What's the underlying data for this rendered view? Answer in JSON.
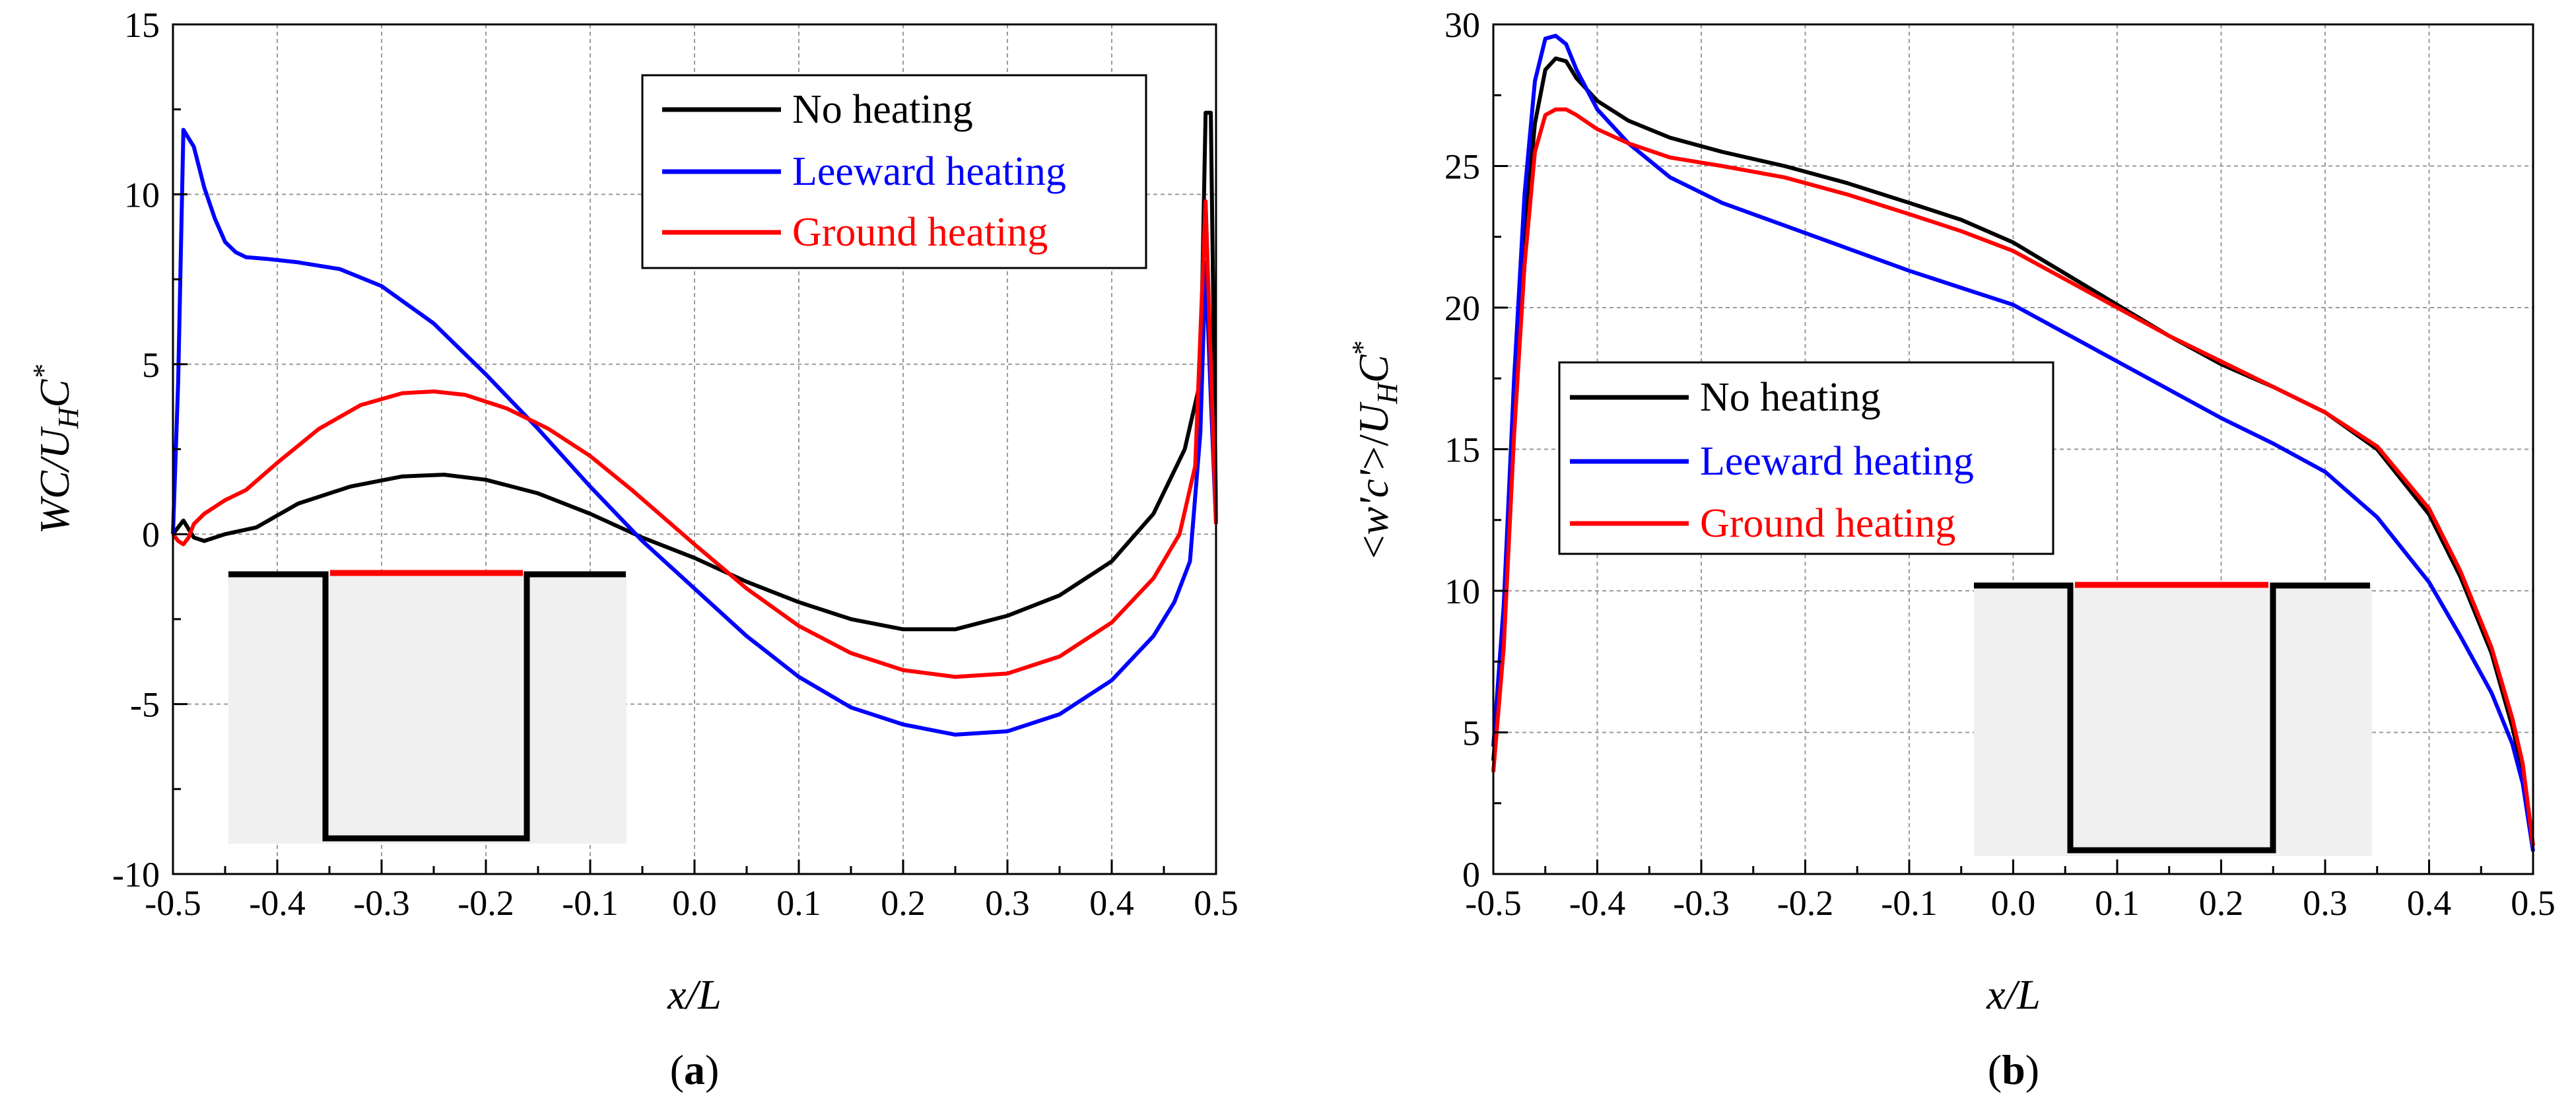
{
  "chart_data": [
    {
      "panel": "(a)",
      "panel_letter": "a",
      "type": "line",
      "xlabel": "x/L",
      "ylabel": "WC/U_H C*",
      "xlim": [
        -0.5,
        0.5
      ],
      "ylim": [
        -10,
        15
      ],
      "xticks": [
        -0.5,
        -0.4,
        -0.3,
        -0.2,
        -0.1,
        0.0,
        0.1,
        0.2,
        0.3,
        0.4,
        0.5
      ],
      "xtick_labels": [
        "-0.5",
        "-0.4",
        "-0.3",
        "-0.2",
        "-0.1",
        "0.0",
        "0.1",
        "0.2",
        "0.3",
        "0.4",
        "0.5"
      ],
      "yticks": [
        -10,
        -5,
        0,
        5,
        10,
        15
      ],
      "ytick_labels": [
        "-10",
        "-5",
        "0",
        "5",
        "10",
        "15"
      ],
      "grid": true,
      "legend_position": "top-right",
      "series": [
        {
          "name": "No heating",
          "color": "#000000",
          "x": [
            -0.5,
            -0.49,
            -0.48,
            -0.47,
            -0.45,
            -0.42,
            -0.38,
            -0.33,
            -0.28,
            -0.24,
            -0.2,
            -0.15,
            -0.1,
            -0.05,
            0.0,
            0.05,
            0.1,
            0.15,
            0.2,
            0.25,
            0.3,
            0.35,
            0.4,
            0.44,
            0.47,
            0.485,
            0.49,
            0.495,
            0.5
          ],
          "y": [
            0,
            0.4,
            -0.1,
            -0.2,
            0.0,
            0.2,
            0.9,
            1.4,
            1.7,
            1.75,
            1.6,
            1.2,
            0.6,
            -0.1,
            -0.7,
            -1.4,
            -2.0,
            -2.5,
            -2.8,
            -2.8,
            -2.4,
            -1.8,
            -0.8,
            0.6,
            2.5,
            4.5,
            12.4,
            12.4,
            0.4
          ]
        },
        {
          "name": "Leeward heating",
          "color": "#0000ff",
          "x": [
            -0.5,
            -0.495,
            -0.49,
            -0.48,
            -0.47,
            -0.46,
            -0.45,
            -0.44,
            -0.43,
            -0.41,
            -0.38,
            -0.34,
            -0.3,
            -0.25,
            -0.2,
            -0.15,
            -0.1,
            -0.05,
            0.0,
            0.05,
            0.1,
            0.15,
            0.2,
            0.25,
            0.3,
            0.35,
            0.4,
            0.44,
            0.46,
            0.475,
            0.485,
            0.49,
            0.495,
            0.5
          ],
          "y": [
            0,
            4.5,
            11.9,
            11.4,
            10.2,
            9.3,
            8.6,
            8.3,
            8.15,
            8.1,
            8.0,
            7.8,
            7.3,
            6.2,
            4.7,
            3.1,
            1.4,
            -0.2,
            -1.6,
            -3.0,
            -4.2,
            -5.1,
            -5.6,
            -5.9,
            -5.8,
            -5.3,
            -4.3,
            -3.0,
            -2.0,
            -0.8,
            3.0,
            8.0,
            4.0,
            0.3
          ]
        },
        {
          "name": "Ground heating",
          "color": "#ff0000",
          "x": [
            -0.5,
            -0.495,
            -0.49,
            -0.485,
            -0.48,
            -0.47,
            -0.46,
            -0.45,
            -0.43,
            -0.4,
            -0.36,
            -0.32,
            -0.28,
            -0.25,
            -0.22,
            -0.18,
            -0.14,
            -0.1,
            -0.06,
            0.0,
            0.05,
            0.1,
            0.15,
            0.2,
            0.25,
            0.3,
            0.35,
            0.4,
            0.44,
            0.465,
            0.48,
            0.49,
            0.495,
            0.5
          ],
          "y": [
            0,
            -0.2,
            -0.3,
            -0.1,
            0.3,
            0.6,
            0.8,
            1.0,
            1.3,
            2.1,
            3.1,
            3.8,
            4.15,
            4.2,
            4.1,
            3.7,
            3.1,
            2.3,
            1.3,
            -0.3,
            -1.6,
            -2.7,
            -3.5,
            -4.0,
            -4.2,
            -4.1,
            -3.6,
            -2.6,
            -1.3,
            0.0,
            2.0,
            9.8,
            5.0,
            0.3
          ]
        }
      ],
      "inset": {
        "description": "street canyon cross-section",
        "heated_surface_color": "#ff0000"
      }
    },
    {
      "panel": "(b)",
      "panel_letter": "b",
      "type": "line",
      "xlabel": "x/L",
      "ylabel": "<w'c'>/U_H C*",
      "xlim": [
        -0.5,
        0.5
      ],
      "ylim": [
        0,
        30
      ],
      "xticks": [
        -0.5,
        -0.4,
        -0.3,
        -0.2,
        -0.1,
        0.0,
        0.1,
        0.2,
        0.3,
        0.4,
        0.5
      ],
      "xtick_labels": [
        "-0.5",
        "-0.4",
        "-0.3",
        "-0.2",
        "-0.1",
        "0.0",
        "0.1",
        "0.2",
        "0.3",
        "0.4",
        "0.5"
      ],
      "yticks": [
        0,
        5,
        10,
        15,
        20,
        25,
        30
      ],
      "ytick_labels": [
        "0",
        "5",
        "10",
        "15",
        "20",
        "25",
        "30"
      ],
      "grid": true,
      "legend_position": "center-left",
      "series": [
        {
          "name": "No heating",
          "color": "#000000",
          "x": [
            -0.5,
            -0.49,
            -0.48,
            -0.47,
            -0.46,
            -0.45,
            -0.44,
            -0.43,
            -0.42,
            -0.4,
            -0.37,
            -0.33,
            -0.28,
            -0.22,
            -0.16,
            -0.1,
            -0.05,
            0.0,
            0.05,
            0.1,
            0.15,
            0.2,
            0.25,
            0.3,
            0.35,
            0.4,
            0.43,
            0.46,
            0.48,
            0.49,
            0.5
          ],
          "y": [
            4.0,
            8.5,
            16.0,
            22.5,
            26.5,
            28.4,
            28.8,
            28.7,
            28.1,
            27.3,
            26.6,
            26.0,
            25.5,
            25.0,
            24.4,
            23.7,
            23.1,
            22.3,
            21.2,
            20.1,
            19.0,
            18.0,
            17.2,
            16.3,
            15.0,
            12.7,
            10.5,
            7.8,
            5.2,
            3.6,
            1.0
          ]
        },
        {
          "name": "Leeward heating",
          "color": "#0000ff",
          "x": [
            -0.5,
            -0.49,
            -0.48,
            -0.47,
            -0.46,
            -0.45,
            -0.44,
            -0.43,
            -0.42,
            -0.4,
            -0.37,
            -0.33,
            -0.28,
            -0.22,
            -0.16,
            -0.1,
            -0.05,
            0.0,
            0.05,
            0.1,
            0.15,
            0.2,
            0.25,
            0.3,
            0.35,
            0.4,
            0.43,
            0.46,
            0.48,
            0.49,
            0.5
          ],
          "y": [
            4.5,
            9.5,
            17.5,
            24.0,
            28.0,
            29.5,
            29.6,
            29.3,
            28.4,
            27.0,
            25.8,
            24.6,
            23.7,
            22.9,
            22.1,
            21.3,
            20.7,
            20.1,
            19.1,
            18.1,
            17.1,
            16.1,
            15.2,
            14.2,
            12.6,
            10.3,
            8.4,
            6.4,
            4.6,
            3.2,
            0.8
          ]
        },
        {
          "name": "Ground heating",
          "color": "#ff0000",
          "x": [
            -0.5,
            -0.49,
            -0.48,
            -0.47,
            -0.46,
            -0.45,
            -0.44,
            -0.43,
            -0.42,
            -0.4,
            -0.37,
            -0.33,
            -0.28,
            -0.22,
            -0.16,
            -0.1,
            -0.05,
            0.0,
            0.05,
            0.1,
            0.15,
            0.2,
            0.25,
            0.3,
            0.35,
            0.4,
            0.43,
            0.46,
            0.48,
            0.49,
            0.5
          ],
          "y": [
            3.6,
            8.0,
            15.5,
            21.5,
            25.5,
            26.8,
            27.0,
            27.0,
            26.8,
            26.3,
            25.8,
            25.3,
            25.0,
            24.6,
            24.0,
            23.3,
            22.7,
            22.0,
            21.0,
            20.0,
            19.0,
            18.1,
            17.2,
            16.3,
            15.1,
            12.9,
            10.7,
            8.0,
            5.5,
            3.9,
            1.0
          ]
        }
      ],
      "inset": {
        "description": "street canyon cross-section",
        "heated_surface_color": "#ff0000"
      }
    }
  ]
}
